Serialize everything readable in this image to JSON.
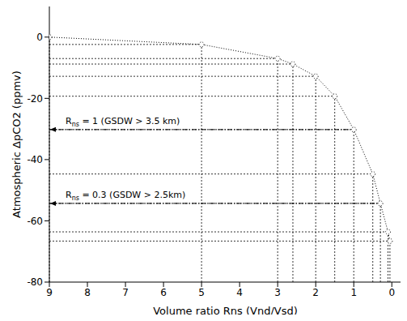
{
  "chart_data": {
    "type": "line",
    "x_label": "Volume ratio Rns (Vnd/Vsd)",
    "y_label": "Atmospheric ΔpCO2 (ppmv)",
    "x": [
      9,
      5,
      3,
      2.6,
      2,
      1.5,
      1,
      0.5,
      0.3,
      0.1,
      0.05
    ],
    "values": [
      0,
      -2.4,
      -7,
      -8.8,
      -12.8,
      -19.3,
      -30.2,
      -44.7,
      -54.3,
      -63.6,
      -66.6
    ],
    "color": "#000000",
    "marker": "circle",
    "line_style": "dotted",
    "xlim": [
      9,
      -0.25
    ],
    "xticks": [
      9,
      8,
      7,
      6,
      5,
      4,
      3,
      2,
      1,
      0
    ],
    "ylim": [
      -80,
      10
    ],
    "yticks": [
      0,
      -20,
      -40,
      -60,
      -80
    ],
    "annotations": [
      {
        "text": "Rns = 1 (GSDW > 3.5 km)",
        "x": 1
      },
      {
        "text": "Rns = 0.3 (GSDW > 2.5km)",
        "x": 0.3
      }
    ]
  }
}
